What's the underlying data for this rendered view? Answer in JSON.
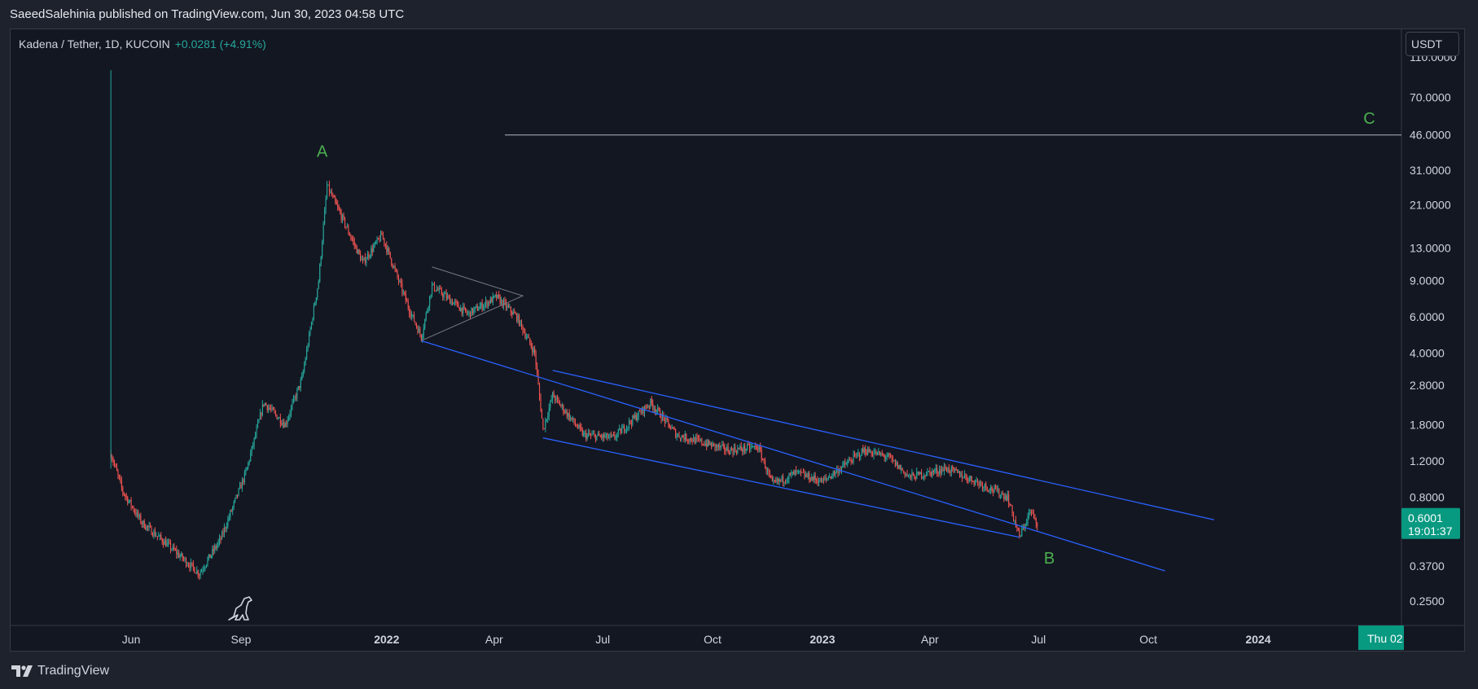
{
  "header": {
    "published_by": "SaeedSalehinia published on TradingView.com, Jun 30, 2023 04:58 UTC"
  },
  "legend": {
    "symbol": "Kadena / Tether, 1D, KUCOIN",
    "change": "+0.0281 (+4.91%)"
  },
  "currency_button": "USDT",
  "footer": {
    "brand": "TradingView"
  },
  "colors": {
    "up": "#26a69a",
    "down": "#ef5350",
    "channel": "#2962ff",
    "label": "#4caf50",
    "price_tag": "#089981"
  },
  "chart_data": {
    "type": "candlestick",
    "scale": "log",
    "y_ticks": [
      {
        "label": "110.0000",
        "value": 110
      },
      {
        "label": "70.0000",
        "value": 70
      },
      {
        "label": "46.0000",
        "value": 46
      },
      {
        "label": "31.0000",
        "value": 31
      },
      {
        "label": "21.0000",
        "value": 21
      },
      {
        "label": "13.0000",
        "value": 13
      },
      {
        "label": "9.0000",
        "value": 9
      },
      {
        "label": "6.0000",
        "value": 6
      },
      {
        "label": "4.0000",
        "value": 4
      },
      {
        "label": "2.8000",
        "value": 2.8
      },
      {
        "label": "1.8000",
        "value": 1.8
      },
      {
        "label": "1.2000",
        "value": 1.2
      },
      {
        "label": "0.8000",
        "value": 0.8
      },
      {
        "label": "0.3700",
        "value": 0.37
      },
      {
        "label": "0.2500",
        "value": 0.25
      }
    ],
    "x_ticks": [
      {
        "label": "Jun",
        "date": "2021-06-01",
        "bold": false
      },
      {
        "label": "Sep",
        "date": "2021-09-01",
        "bold": false
      },
      {
        "label": "2022",
        "date": "2022-01-01",
        "bold": true
      },
      {
        "label": "Apr",
        "date": "2022-04-01",
        "bold": false
      },
      {
        "label": "Jul",
        "date": "2022-07-01",
        "bold": false
      },
      {
        "label": "Oct",
        "date": "2022-10-01",
        "bold": false
      },
      {
        "label": "2023",
        "date": "2023-01-01",
        "bold": true
      },
      {
        "label": "Apr",
        "date": "2023-04-01",
        "bold": false
      },
      {
        "label": "Jul",
        "date": "2023-07-01",
        "bold": false
      },
      {
        "label": "Oct",
        "date": "2023-10-01",
        "bold": false
      },
      {
        "label": "2024",
        "date": "2024-01-01",
        "bold": true
      }
    ],
    "x_range": [
      "2021-02-20",
      "2024-04-30"
    ],
    "y_range": [
      0.19,
      150
    ],
    "price_path": [
      {
        "date": "2021-05-15",
        "value": 1.3
      },
      {
        "date": "2021-05-25",
        "value": 0.85
      },
      {
        "date": "2021-06-10",
        "value": 0.6
      },
      {
        "date": "2021-07-05",
        "value": 0.45
      },
      {
        "date": "2021-07-28",
        "value": 0.34
      },
      {
        "date": "2021-08-15",
        "value": 0.5
      },
      {
        "date": "2021-09-05",
        "value": 1.05
      },
      {
        "date": "2021-09-20",
        "value": 2.3
      },
      {
        "date": "2021-10-08",
        "value": 1.8
      },
      {
        "date": "2021-10-22",
        "value": 3.0
      },
      {
        "date": "2021-11-05",
        "value": 9.0
      },
      {
        "date": "2021-11-12",
        "value": 26.0
      },
      {
        "date": "2021-11-25",
        "value": 18.0
      },
      {
        "date": "2021-12-12",
        "value": 11.0
      },
      {
        "date": "2021-12-28",
        "value": 15.0
      },
      {
        "date": "2022-01-20",
        "value": 6.5
      },
      {
        "date": "2022-01-30",
        "value": 4.8
      },
      {
        "date": "2022-02-08",
        "value": 8.5
      },
      {
        "date": "2022-03-10",
        "value": 6.2
      },
      {
        "date": "2022-04-03",
        "value": 7.5
      },
      {
        "date": "2022-04-20",
        "value": 6.0
      },
      {
        "date": "2022-05-05",
        "value": 4.0
      },
      {
        "date": "2022-05-12",
        "value": 1.7
      },
      {
        "date": "2022-05-20",
        "value": 2.5
      },
      {
        "date": "2022-06-15",
        "value": 1.6
      },
      {
        "date": "2022-07-10",
        "value": 1.55
      },
      {
        "date": "2022-08-10",
        "value": 2.3
      },
      {
        "date": "2022-09-01",
        "value": 1.6
      },
      {
        "date": "2022-10-15",
        "value": 1.35
      },
      {
        "date": "2022-11-08",
        "value": 1.4
      },
      {
        "date": "2022-11-20",
        "value": 0.92
      },
      {
        "date": "2022-12-10",
        "value": 1.05
      },
      {
        "date": "2023-01-01",
        "value": 0.95
      },
      {
        "date": "2023-02-05",
        "value": 1.35
      },
      {
        "date": "2023-02-25",
        "value": 1.25
      },
      {
        "date": "2023-03-15",
        "value": 1.0
      },
      {
        "date": "2023-04-15",
        "value": 1.1
      },
      {
        "date": "2023-05-10",
        "value": 0.95
      },
      {
        "date": "2023-06-05",
        "value": 0.8
      },
      {
        "date": "2023-06-15",
        "value": 0.51
      },
      {
        "date": "2023-06-24",
        "value": 0.68
      },
      {
        "date": "2023-06-30",
        "value": 0.6
      }
    ],
    "spike": {
      "date": "2021-05-15",
      "high": 95,
      "low": 1.1
    },
    "trendlines": [
      {
        "name": "channel-top",
        "from": {
          "date": "2022-05-20",
          "value": 3.3
        },
        "to": {
          "date": "2023-11-25",
          "value": 0.62
        }
      },
      {
        "name": "channel-bottom",
        "from": {
          "date": "2022-01-30",
          "value": 4.6
        },
        "to": {
          "date": "2023-10-15",
          "value": 0.35
        }
      },
      {
        "name": "channel-inner",
        "from": {
          "date": "2022-05-12",
          "value": 1.55
        },
        "to": {
          "date": "2023-06-15",
          "value": 0.51
        }
      }
    ],
    "triangle": [
      {
        "date": "2022-02-08",
        "value": 10.5
      },
      {
        "date": "2022-04-25",
        "value": 7.6
      },
      {
        "date": "2022-01-30",
        "value": 4.6
      }
    ],
    "horizontal_line": {
      "value": 46,
      "from_date": "2022-04-10"
    },
    "wave_labels": [
      {
        "text": "A",
        "date": "2021-11-08",
        "value": 36
      },
      {
        "text": "B",
        "date": "2023-07-10",
        "value": 0.38
      },
      {
        "text": "C",
        "date": "2024-04-03",
        "value": 52
      }
    ],
    "current_price": {
      "label": "0.6001",
      "countdown": "19:01:37",
      "value": 0.6001
    },
    "crosshair_date_label": "Thu 02"
  }
}
